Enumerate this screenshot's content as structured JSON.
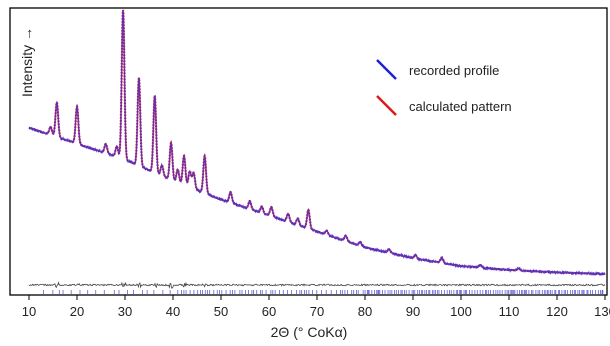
{
  "chart_data": {
    "type": "line",
    "title": "",
    "xlabel": "2Θ (° CoKα)",
    "ylabel": "Intensity →",
    "xlim": [
      10,
      130
    ],
    "ylim": [
      0,
      100
    ],
    "xticks": [
      "10",
      "20",
      "30",
      "40",
      "50",
      "60",
      "70",
      "80",
      "90",
      "100",
      "110",
      "120",
      "130"
    ],
    "grid": false,
    "legend_position": "top-right",
    "series": [
      {
        "name": "recorded profile",
        "color": "#1f1fd6"
      },
      {
        "name": "calculated pattern",
        "color": "#e01818"
      }
    ],
    "overlay_color": "#7a2fa0",
    "difference_color": "#444444",
    "reflection_marks_color": "#4a4ad8",
    "background": {
      "x": [
        10,
        15,
        20,
        30,
        40,
        50,
        60,
        70,
        80,
        90,
        100,
        110,
        120,
        130
      ],
      "y": [
        58,
        55,
        52,
        46,
        38,
        31,
        25,
        19,
        13,
        9,
        6,
        4.5,
        3.6,
        3
      ]
    },
    "peaks": [
      {
        "x": 14.5,
        "h": 3.0
      },
      {
        "x": 15.8,
        "h": 13.0
      },
      {
        "x": 20.0,
        "h": 14.0
      },
      {
        "x": 26.0,
        "h": 3.5
      },
      {
        "x": 28.3,
        "h": 4.0
      },
      {
        "x": 29.6,
        "h": 56.0
      },
      {
        "x": 32.9,
        "h": 33.0
      },
      {
        "x": 36.2,
        "h": 29.0
      },
      {
        "x": 37.7,
        "h": 4.0
      },
      {
        "x": 39.6,
        "h": 14.0
      },
      {
        "x": 41.0,
        "h": 5.0
      },
      {
        "x": 42.3,
        "h": 11.0
      },
      {
        "x": 43.5,
        "h": 6.0
      },
      {
        "x": 44.3,
        "h": 6.0
      },
      {
        "x": 46.6,
        "h": 14.0
      },
      {
        "x": 52.0,
        "h": 4.0
      },
      {
        "x": 56.0,
        "h": 3.0
      },
      {
        "x": 58.5,
        "h": 2.5
      },
      {
        "x": 60.5,
        "h": 3.5
      },
      {
        "x": 64.0,
        "h": 3.0
      },
      {
        "x": 66.0,
        "h": 2.5
      },
      {
        "x": 68.2,
        "h": 7.0
      },
      {
        "x": 72.0,
        "h": 1.5
      },
      {
        "x": 76.0,
        "h": 2.0
      },
      {
        "x": 79.0,
        "h": 1.5
      },
      {
        "x": 85.0,
        "h": 1.3
      },
      {
        "x": 90.5,
        "h": 1.2
      },
      {
        "x": 96.0,
        "h": 2.0
      },
      {
        "x": 104.0,
        "h": 1.0
      },
      {
        "x": 112.0,
        "h": 0.8
      }
    ]
  }
}
